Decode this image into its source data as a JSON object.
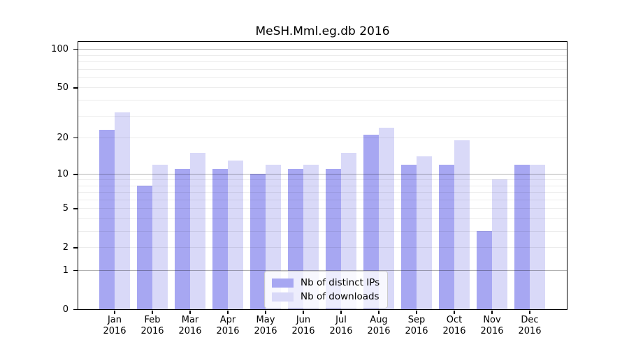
{
  "title": "MeSH.Mml.eg.db 2016",
  "chart_data": {
    "type": "bar",
    "title": "MeSH.Mml.eg.db 2016",
    "categories": [
      "Jan 2016",
      "Feb 2016",
      "Mar 2016",
      "Apr 2016",
      "May 2016",
      "Jun 2016",
      "Jul 2016",
      "Aug 2016",
      "Sep 2016",
      "Oct 2016",
      "Nov 2016",
      "Dec 2016"
    ],
    "series": [
      {
        "name": "Nb of distinct IPs",
        "color": "#a7a7f2",
        "values": [
          23,
          8,
          11,
          11,
          10,
          11,
          11,
          21,
          12,
          12,
          3,
          12
        ]
      },
      {
        "name": "Nb of downloads",
        "color": "#d9d9f8",
        "values": [
          32,
          12,
          15,
          13,
          12,
          12,
          15,
          24,
          14,
          19,
          9,
          12
        ]
      }
    ],
    "xlabel": "",
    "ylabel": "",
    "y_scale": "log10(1+v)",
    "ylim": [
      0,
      114
    ],
    "y_tick_labels": [
      0,
      1,
      2,
      5,
      10,
      20,
      50,
      100
    ],
    "grid_major": [
      1,
      10,
      100
    ],
    "grid_minor": [
      2,
      3,
      4,
      5,
      6,
      7,
      8,
      9,
      20,
      30,
      40,
      50,
      60,
      70,
      80,
      90
    ],
    "grid": "on",
    "legend_position": "inside-bottom-center",
    "legend_entries": [
      "Nb of distinct IPs",
      "Nb of downloads"
    ]
  }
}
